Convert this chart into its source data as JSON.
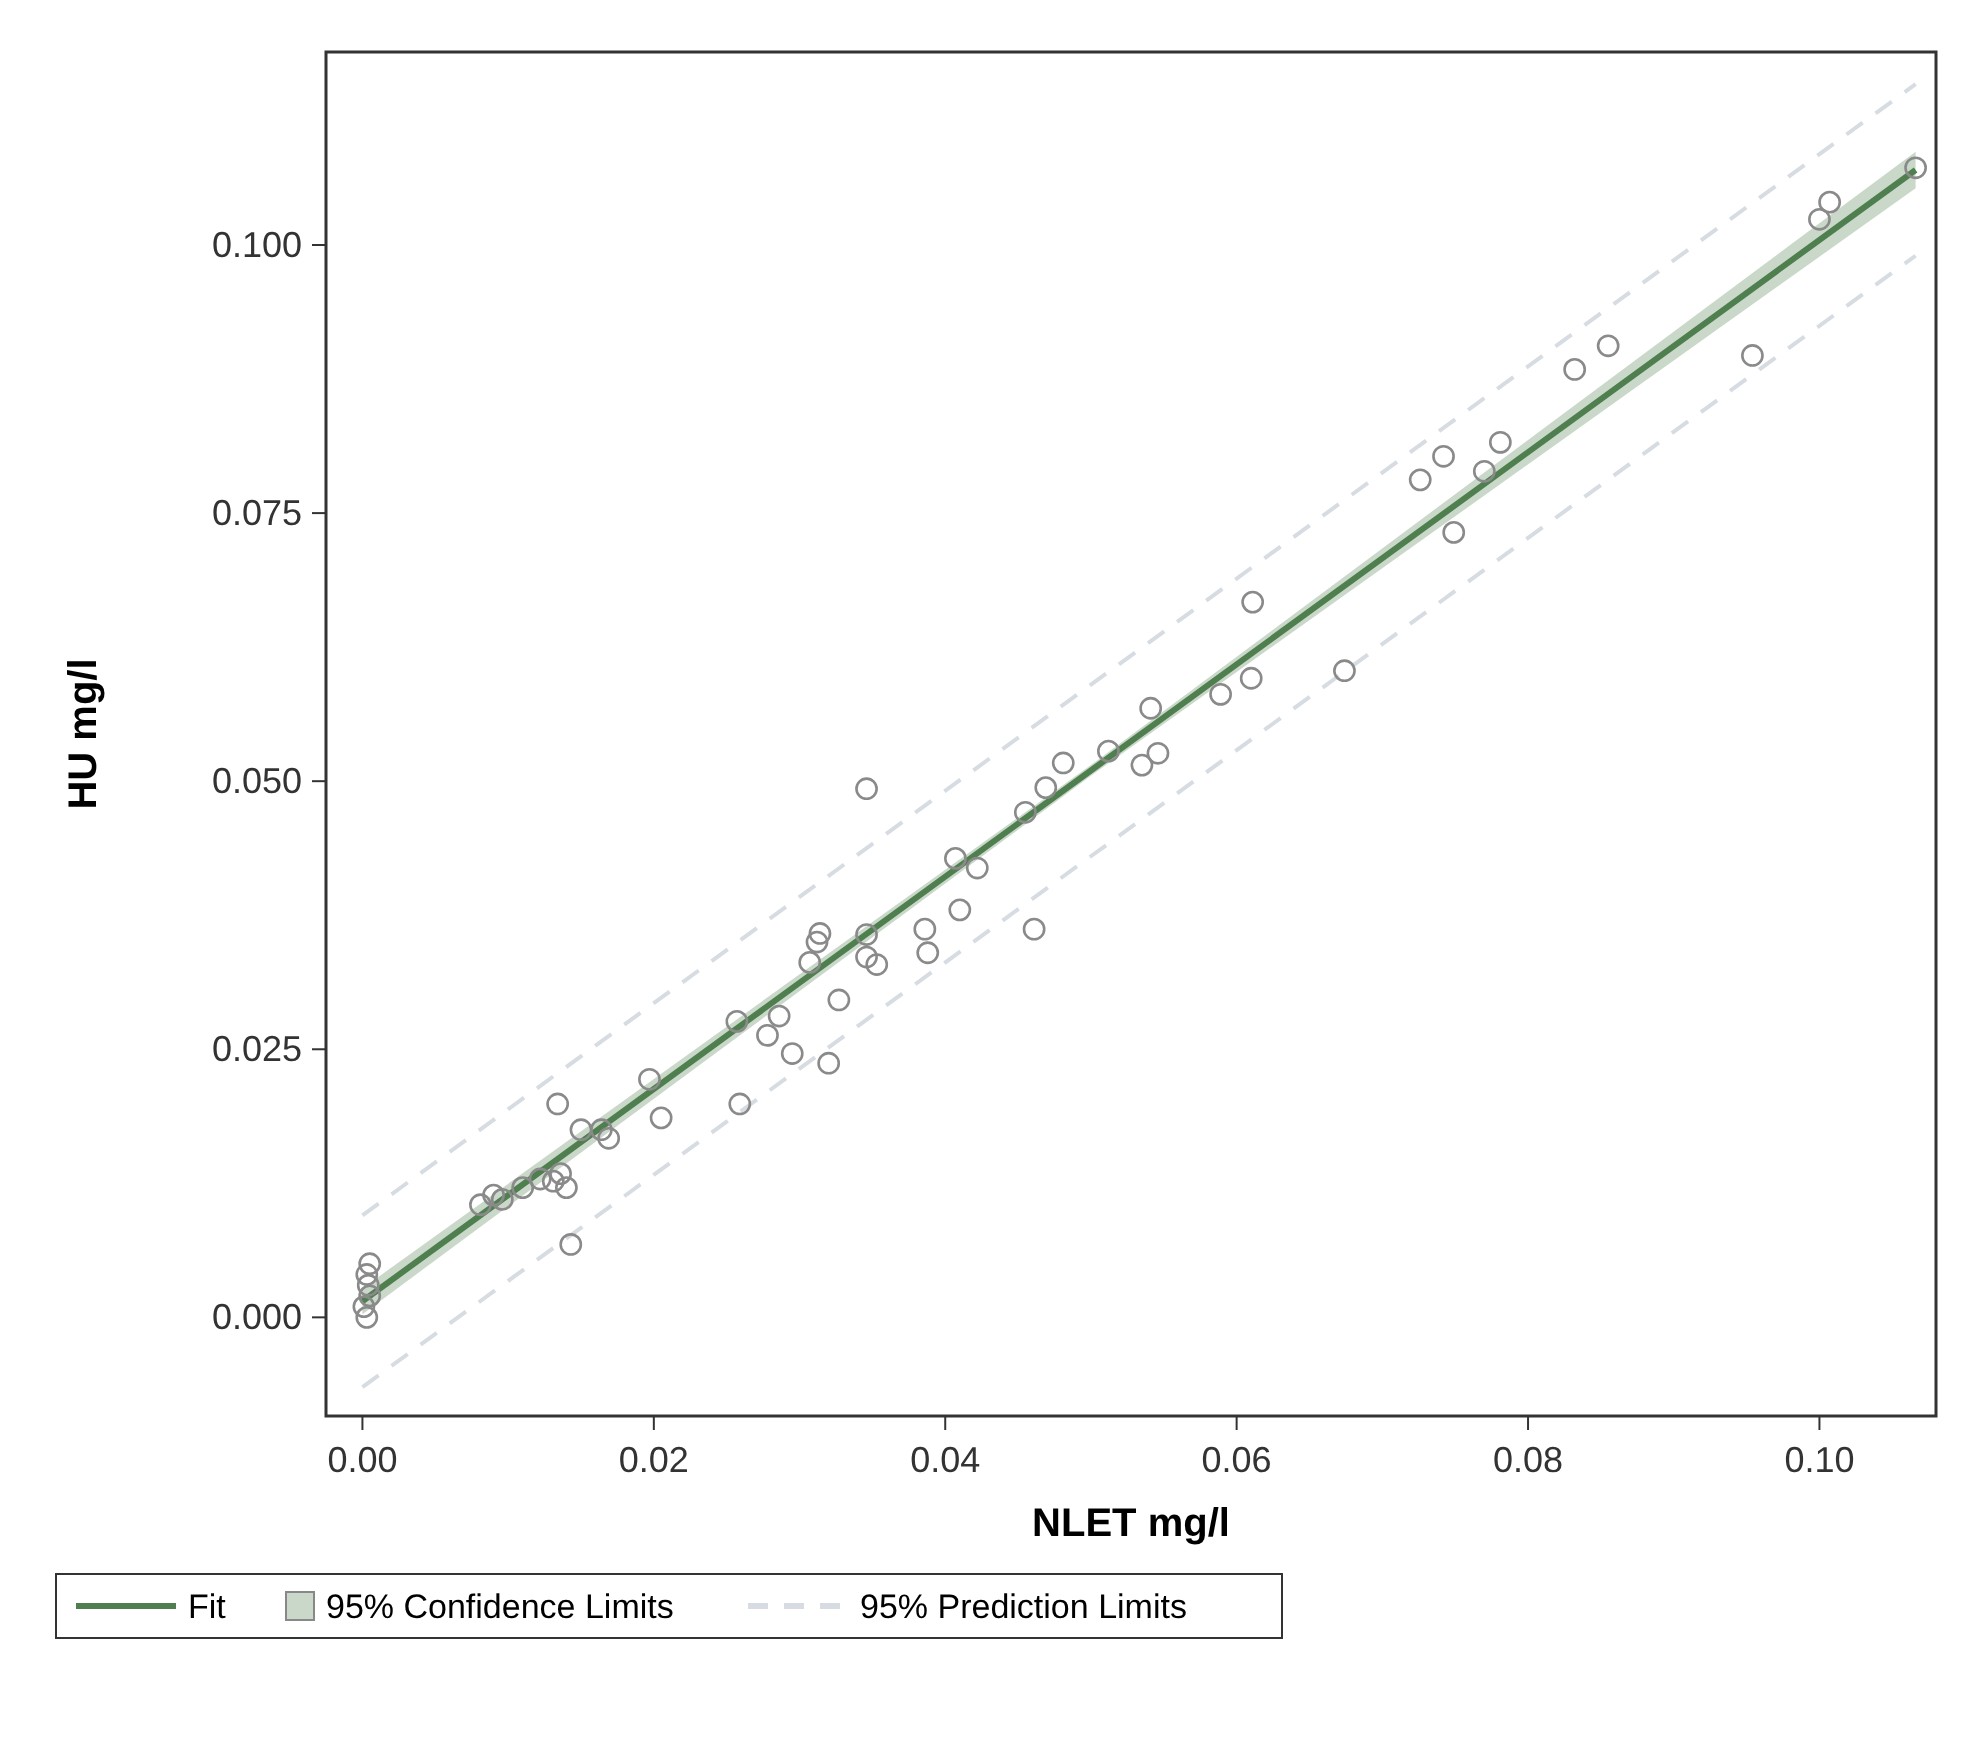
{
  "chart_data": {
    "type": "scatter",
    "xlabel": "NLET mg/l",
    "ylabel": "HU mg/l",
    "xlim": [
      -0.0025,
      0.108
    ],
    "ylim": [
      -0.0092,
      0.118
    ],
    "xticks": [
      {
        "value": 0,
        "label": "0.00"
      },
      {
        "value": 0.02,
        "label": "0.02"
      },
      {
        "value": 0.04,
        "label": "0.04"
      },
      {
        "value": 0.06,
        "label": "0.06"
      },
      {
        "value": 0.08,
        "label": "0.08"
      },
      {
        "value": 0.1,
        "label": "0.10"
      }
    ],
    "yticks": [
      {
        "value": 0,
        "label": "0.000"
      },
      {
        "value": 0.025,
        "label": "0.025"
      },
      {
        "value": 0.05,
        "label": "0.050"
      },
      {
        "value": 0.075,
        "label": "0.075"
      },
      {
        "value": 0.1,
        "label": "0.100"
      }
    ],
    "grid": false,
    "legend": "bottom",
    "annotations": [
      "95% Confidence Limits"
    ],
    "series": [
      {
        "type": "line",
        "name": "Fit",
        "color": "#4f7f4f",
        "line_style": "solid",
        "marker": "none",
        "x": [
          0,
          0.05,
          0.1066
        ],
        "values": [
          0.0015,
          0.051,
          0.107
        ],
        "lower": [
          0.0003,
          0.0505,
          0.1053
        ],
        "upper": [
          0.0027,
          0.0515,
          0.1087
        ]
      },
      {
        "type": "line",
        "name": "95% Prediction Limits",
        "color": "#d6dce2",
        "line_style": "dashed",
        "marker": "none",
        "x": [
          0,
          0.05,
          0.1066
        ],
        "values": [
          0.0095,
          0.059,
          0.115
        ]
      },
      {
        "type": "line",
        "color": "#d6dce2",
        "line_style": "dashed",
        "marker": "none",
        "x": [
          0,
          0.05,
          0.1066
        ],
        "values": [
          -0.0065,
          0.043,
          0.099
        ]
      },
      {
        "color": "#8a8a8a",
        "marker": "circle",
        "x": [
          0.0003,
          0.0001,
          0.0005,
          0.0004,
          0.0005,
          0.0003,
          0.0081,
          0.009,
          0.0096,
          0.011,
          0.0122,
          0.0131,
          0.0136,
          0.0134,
          0.014,
          0.0143,
          0.015,
          0.0164,
          0.0169,
          0.0197,
          0.0205,
          0.0257,
          0.0259,
          0.0278,
          0.0286,
          0.0295,
          0.0307,
          0.0312,
          0.0314,
          0.0346,
          0.032,
          0.0327,
          0.0346,
          0.0353,
          0.0346,
          0.0386,
          0.0388,
          0.041,
          0.0407,
          0.0422,
          0.0461,
          0.0455,
          0.0469,
          0.0481,
          0.0512,
          0.0535,
          0.0546,
          0.0541,
          0.0589,
          0.061,
          0.0611,
          0.0674,
          0.0726,
          0.0742,
          0.0749,
          0.077,
          0.0781,
          0.0832,
          0.0855,
          0.0954,
          0.1,
          0.1007,
          0.1066
        ],
        "values": [
          0.0,
          0.001,
          0.002,
          0.003,
          0.005,
          0.004,
          0.0105,
          0.0114,
          0.011,
          0.0121,
          0.0129,
          0.0127,
          0.0134,
          0.0199,
          0.0121,
          0.0068,
          0.0175,
          0.0175,
          0.0167,
          0.0222,
          0.0186,
          0.0276,
          0.0199,
          0.0263,
          0.0281,
          0.0246,
          0.0331,
          0.035,
          0.0358,
          0.0357,
          0.0237,
          0.0296,
          0.0493,
          0.0329,
          0.0336,
          0.0362,
          0.034,
          0.038,
          0.0428,
          0.0419,
          0.0362,
          0.0471,
          0.0494,
          0.0517,
          0.0528,
          0.0515,
          0.0526,
          0.0568,
          0.0581,
          0.0596,
          0.0667,
          0.0603,
          0.0781,
          0.0803,
          0.0732,
          0.0789,
          0.0816,
          0.0884,
          0.0906,
          0.0897,
          0.1024,
          0.104,
          0.1072
        ]
      }
    ]
  }
}
